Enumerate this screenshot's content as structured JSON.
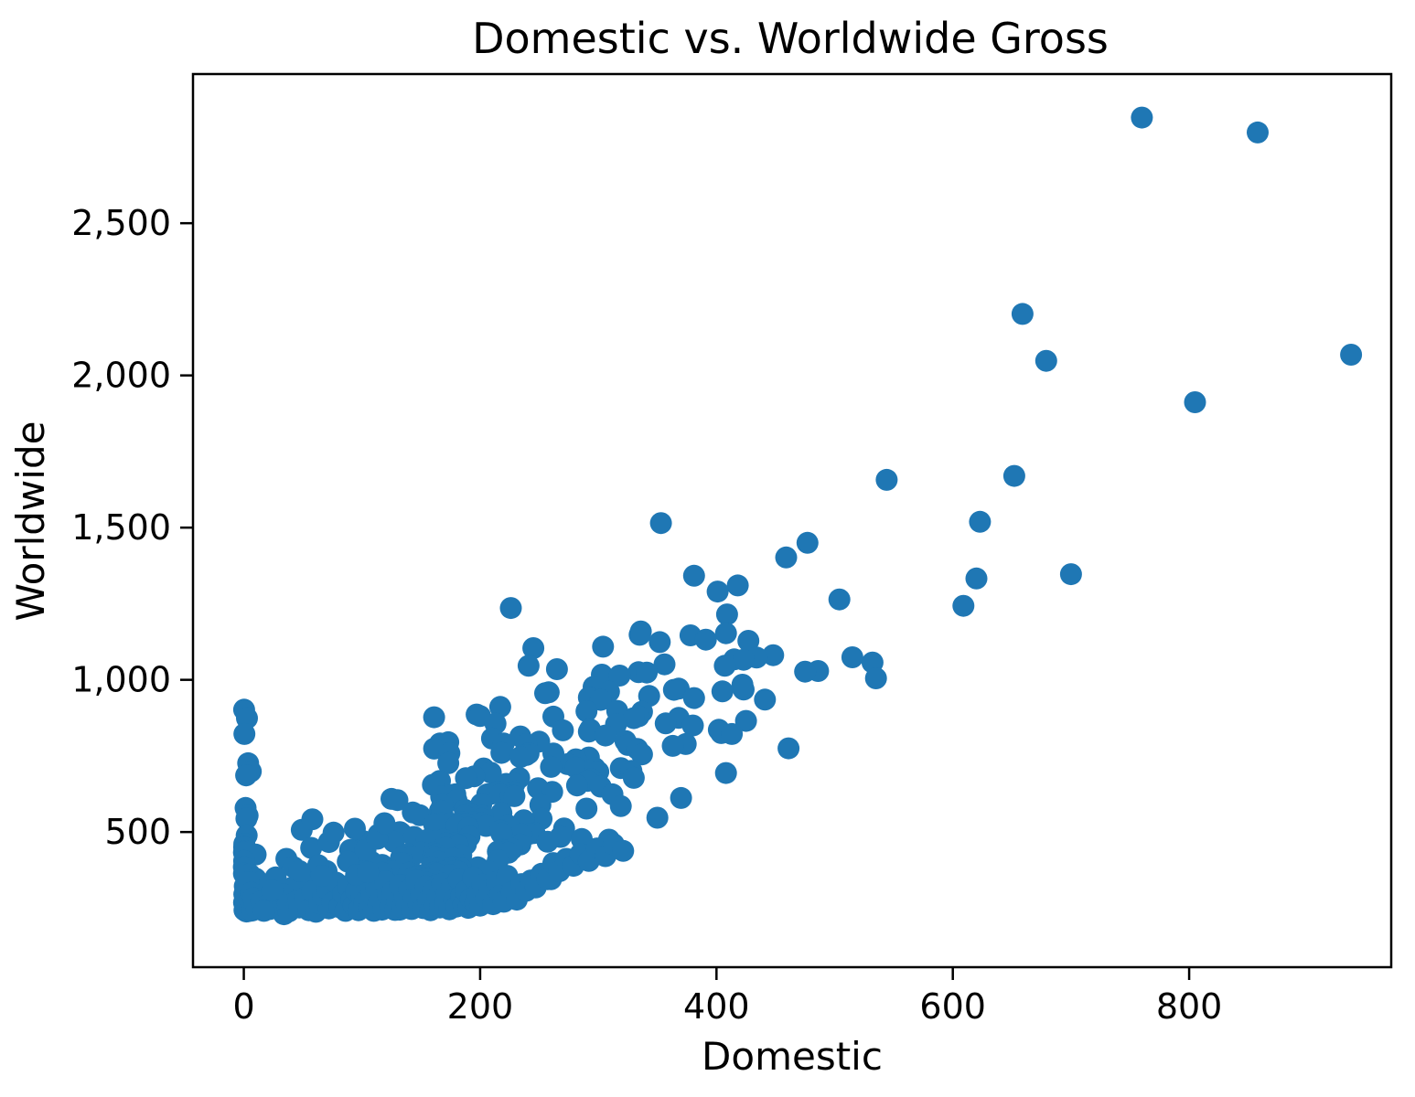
{
  "chart_data": {
    "type": "scatter",
    "title": "Domestic vs. Worldwide Gross",
    "xlabel": "Domestic",
    "ylabel": "Worldwide",
    "xlim": [
      -43,
      971
    ],
    "ylim": [
      56,
      2990
    ],
    "grid": false,
    "legend": null,
    "marker": {
      "color": "#1f77b4",
      "radius_px": 12
    },
    "x_ticks": {
      "values": [
        0,
        200,
        400,
        600,
        800
      ],
      "labels": [
        "0",
        "200",
        "400",
        "600",
        "800"
      ]
    },
    "y_ticks": {
      "values": [
        500,
        1000,
        1500,
        2000,
        2500
      ],
      "labels": [
        "500",
        "1,000",
        "1,500",
        "2,000",
        "2,500"
      ]
    },
    "points": [
      [
        760,
        2847
      ],
      [
        858,
        2798
      ],
      [
        659,
        2202
      ],
      [
        937,
        2068
      ],
      [
        679,
        2048
      ],
      [
        805,
        1912
      ],
      [
        652,
        1670
      ],
      [
        544,
        1657
      ],
      [
        623,
        1519
      ],
      [
        353,
        1515
      ],
      [
        477,
        1450
      ],
      [
        459,
        1402
      ],
      [
        700,
        1347
      ],
      [
        381,
        1342
      ],
      [
        620,
        1333
      ],
      [
        418,
        1310
      ],
      [
        401,
        1290
      ],
      [
        504,
        1264
      ],
      [
        609,
        1243
      ],
      [
        226,
        1236
      ],
      [
        409,
        1215
      ],
      [
        336,
        1159
      ],
      [
        408,
        1153
      ],
      [
        335,
        1148
      ],
      [
        378,
        1146
      ],
      [
        391,
        1132
      ],
      [
        427,
        1128
      ],
      [
        352,
        1124
      ],
      [
        304,
        1109
      ],
      [
        245,
        1104
      ],
      [
        448,
        1081
      ],
      [
        515,
        1074
      ],
      [
        434,
        1073
      ],
      [
        415,
        1067
      ],
      [
        423,
        1066
      ],
      [
        532,
        1057
      ],
      [
        356,
        1051
      ],
      [
        407,
        1046
      ],
      [
        241,
        1046
      ],
      [
        265,
        1035
      ],
      [
        486,
        1029
      ],
      [
        475,
        1027
      ],
      [
        334,
        1025
      ],
      [
        341,
        1024
      ],
      [
        303,
        1017
      ],
      [
        318,
        1014
      ],
      [
        535,
        1005
      ],
      [
        422,
        984
      ],
      [
        296,
        977
      ],
      [
        368,
        971
      ],
      [
        423,
        968
      ],
      [
        364,
        967
      ],
      [
        405,
        962
      ],
      [
        309,
        961
      ],
      [
        258,
        959
      ],
      [
        255,
        956
      ],
      [
        343,
        947
      ],
      [
        292,
        942
      ],
      [
        381,
        940
      ],
      [
        441,
        935
      ],
      [
        302,
        934
      ],
      [
        217,
        911
      ],
      [
        0.3,
        902
      ],
      [
        316,
        898
      ],
      [
        290,
        897
      ],
      [
        337,
        895
      ],
      [
        197,
        886
      ],
      [
        200,
        881
      ],
      [
        334,
        880
      ],
      [
        262,
        879
      ],
      [
        161,
        877
      ],
      [
        368,
        875
      ],
      [
        330,
        874
      ],
      [
        2.7,
        874
      ],
      [
        425,
        865
      ],
      [
        357,
        857
      ],
      [
        213,
        856
      ],
      [
        315,
        854
      ],
      [
        380,
        850
      ],
      [
        293,
        837
      ],
      [
        402,
        836
      ],
      [
        270,
        834
      ],
      [
        292,
        830
      ],
      [
        404,
        825
      ],
      [
        0.5,
        822
      ],
      [
        413,
        822
      ],
      [
        306,
        817
      ],
      [
        234,
        814
      ],
      [
        210,
        807
      ],
      [
        323,
        799
      ],
      [
        250,
        797
      ],
      [
        173,
        795
      ],
      [
        220,
        791
      ],
      [
        166,
        791
      ],
      [
        374,
        789
      ],
      [
        239,
        789
      ],
      [
        325,
        786
      ],
      [
        363,
        783
      ],
      [
        461,
        775
      ],
      [
        161,
        774
      ],
      [
        333,
        773
      ],
      [
        218,
        760
      ],
      [
        174,
        759
      ],
      [
        262,
        758
      ],
      [
        241,
        758
      ],
      [
        337,
        755
      ],
      [
        239,
        753
      ],
      [
        234,
        746
      ],
      [
        292,
        745
      ],
      [
        281,
        739
      ],
      [
        3.7,
        726
      ],
      [
        173,
        726
      ],
      [
        274,
        723
      ],
      [
        260,
        714
      ],
      [
        281,
        712
      ],
      [
        319,
        710
      ],
      [
        297,
        710
      ],
      [
        203,
        709
      ],
      [
        328,
        701
      ],
      [
        5.9,
        699
      ],
      [
        300,
        698
      ],
      [
        209,
        695
      ],
      [
        408,
        694
      ],
      [
        2,
        686
      ],
      [
        195,
        683
      ],
      [
        330,
        678
      ],
      [
        233,
        678
      ],
      [
        188,
        677
      ],
      [
        294,
        673
      ],
      [
        291,
        668
      ],
      [
        166,
        668
      ],
      [
        165,
        665
      ],
      [
        229,
        658
      ],
      [
        222,
        658
      ],
      [
        160,
        655
      ],
      [
        282,
        653
      ],
      [
        302,
        649
      ],
      [
        249,
        644
      ],
      [
        215,
        632
      ],
      [
        261,
        632
      ],
      [
        228,
        630
      ],
      [
        210,
        626
      ],
      [
        206,
        624
      ],
      [
        312,
        624
      ],
      [
        179,
        624
      ],
      [
        217,
        623
      ],
      [
        177,
        622
      ],
      [
        226,
        619
      ],
      [
        229,
        618
      ],
      [
        167,
        616
      ],
      [
        370,
        612
      ],
      [
        125,
        609
      ],
      [
        130,
        605
      ],
      [
        180,
        604
      ],
      [
        201,
        592
      ],
      [
        251,
        589
      ],
      [
        168,
        589
      ],
      [
        319,
        585
      ],
      [
        1.5,
        579
      ],
      [
        290,
        577
      ],
      [
        187,
        573
      ],
      [
        166,
        570
      ],
      [
        168,
        567
      ],
      [
        218,
        562
      ],
      [
        143,
        564
      ],
      [
        191,
        560
      ],
      [
        149,
        555
      ],
      [
        3.2,
        554
      ],
      [
        202,
        553
      ],
      [
        187,
        553
      ],
      [
        350,
        547
      ],
      [
        2.2,
        544
      ],
      [
        252,
        543
      ],
      [
        201,
        543
      ],
      [
        237,
        539
      ],
      [
        194,
        533
      ],
      [
        184,
        533
      ],
      [
        201,
        529
      ],
      [
        183,
        527
      ],
      [
        188,
        527
      ],
      [
        167,
        528
      ],
      [
        175,
        528
      ],
      [
        271,
        512
      ],
      [
        224,
        521
      ],
      [
        205,
        520
      ],
      [
        180,
        519
      ],
      [
        190,
        513
      ],
      [
        49,
        507
      ],
      [
        218,
        506
      ],
      [
        217,
        504
      ],
      [
        132,
        500
      ],
      [
        161,
        525
      ],
      [
        246,
        497
      ],
      [
        133,
        497
      ],
      [
        242,
        494
      ],
      [
        235,
        493
      ],
      [
        218,
        495
      ],
      [
        114,
        492
      ],
      [
        2.4,
        489
      ],
      [
        191,
        485
      ],
      [
        268,
        484
      ],
      [
        144,
        484
      ],
      [
        286,
        477
      ],
      [
        309,
        475
      ],
      [
        169,
        475
      ],
      [
        155,
        474
      ],
      [
        101,
        470
      ],
      [
        127,
        468
      ],
      [
        257,
        468
      ],
      [
        178,
        463
      ],
      [
        171,
        463
      ],
      [
        0.4,
        461
      ],
      [
        188,
        460
      ],
      [
        234,
        459
      ],
      [
        0.3,
        450
      ],
      [
        181,
        457
      ],
      [
        171,
        448
      ],
      [
        227,
        444
      ],
      [
        90,
        441
      ],
      [
        219,
        441
      ],
      [
        219,
        440
      ],
      [
        0.7,
        437
      ],
      [
        215,
        436
      ],
      [
        150,
        433
      ],
      [
        0.1,
        433
      ],
      [
        161,
        432
      ],
      [
        224,
        432
      ],
      [
        101,
        428
      ],
      [
        139,
        427
      ],
      [
        163,
        426
      ],
      [
        10,
        426
      ],
      [
        184,
        424
      ],
      [
        142,
        419
      ],
      [
        104,
        416
      ],
      [
        133,
        415
      ],
      [
        162,
        415
      ],
      [
        177,
        413
      ],
      [
        36,
        412
      ],
      [
        215,
        407
      ],
      [
        0.3,
        405
      ],
      [
        165,
        402
      ],
      [
        108,
        402
      ],
      [
        134,
        398
      ],
      [
        103,
        390
      ],
      [
        117,
        392
      ],
      [
        111,
        386
      ],
      [
        177,
        386
      ],
      [
        0.03,
        385
      ],
      [
        198,
        384
      ],
      [
        176,
        383
      ],
      [
        184,
        380
      ],
      [
        114,
        381
      ],
      [
        159,
        385
      ],
      [
        180,
        373
      ],
      [
        206,
        373
      ],
      [
        125,
        371
      ],
      [
        70,
        372
      ],
      [
        101,
        372
      ],
      [
        177,
        370
      ],
      [
        168,
        369
      ],
      [
        182,
        369
      ],
      [
        161,
        367
      ],
      [
        117,
        366
      ],
      [
        140,
        366
      ],
      [
        163,
        363
      ],
      [
        0.1,
        363
      ],
      [
        5,
        361
      ],
      [
        174,
        359
      ],
      [
        148,
        358
      ],
      [
        107,
        352
      ],
      [
        146,
        353
      ],
      [
        71,
        348
      ],
      [
        154,
        347
      ],
      [
        142,
        346
      ],
      [
        10,
        347
      ],
      [
        260,
        345
      ],
      [
        27,
        351
      ],
      [
        122,
        331
      ],
      [
        155,
        333
      ],
      [
        163,
        325
      ],
      [
        138,
        325
      ],
      [
        100,
        325
      ],
      [
        102,
        320
      ],
      [
        187,
        314
      ],
      [
        114,
        310
      ],
      [
        121,
        304
      ],
      [
        150,
        302
      ],
      [
        155,
        298
      ],
      [
        157,
        296
      ],
      [
        160,
        297
      ],
      [
        127,
        287
      ],
      [
        13,
        334
      ],
      [
        52,
        336
      ],
      [
        41,
        318
      ],
      [
        33,
        296
      ],
      [
        83,
        283
      ],
      [
        108,
        268
      ],
      [
        135,
        265
      ],
      [
        99,
        253
      ],
      [
        130,
        246
      ],
      [
        80,
        254
      ],
      [
        66,
        252
      ],
      [
        132,
        245
      ],
      [
        4,
        240
      ],
      [
        34,
        230
      ],
      [
        117,
        245
      ],
      [
        22,
        247
      ],
      [
        31,
        262
      ],
      [
        38,
        239
      ],
      [
        44,
        271
      ],
      [
        47,
        252
      ],
      [
        52,
        284
      ],
      [
        55,
        243
      ],
      [
        58,
        305
      ],
      [
        61,
        238
      ],
      [
        64,
        266
      ],
      [
        67,
        291
      ],
      [
        70,
        315
      ],
      [
        72,
        249
      ],
      [
        75,
        268
      ],
      [
        78,
        334
      ],
      [
        81,
        256
      ],
      [
        84,
        297
      ],
      [
        86,
        241
      ],
      [
        88,
        323
      ],
      [
        91,
        277
      ],
      [
        93,
        259
      ],
      [
        95,
        306
      ],
      [
        97,
        243
      ],
      [
        100,
        286
      ],
      [
        102,
        269
      ],
      [
        104,
        331
      ],
      [
        106,
        252
      ],
      [
        108,
        296
      ],
      [
        110,
        241
      ],
      [
        112,
        315
      ],
      [
        114,
        263
      ],
      [
        116,
        279
      ],
      [
        118,
        248
      ],
      [
        120,
        338
      ],
      [
        122,
        291
      ],
      [
        124,
        257
      ],
      [
        126,
        305
      ],
      [
        128,
        244
      ],
      [
        130,
        272
      ],
      [
        132,
        326
      ],
      [
        134,
        252
      ],
      [
        136,
        289
      ],
      [
        138,
        261
      ],
      [
        140,
        310
      ],
      [
        142,
        247
      ],
      [
        144,
        283
      ],
      [
        146,
        341
      ],
      [
        148,
        262
      ],
      [
        150,
        295
      ],
      [
        152,
        250
      ],
      [
        154,
        322
      ],
      [
        156,
        274
      ],
      [
        158,
        243
      ],
      [
        160,
        308
      ],
      [
        162,
        259
      ],
      [
        164,
        287
      ],
      [
        166,
        252
      ],
      [
        168,
        330
      ],
      [
        170,
        266
      ],
      [
        172,
        299
      ],
      [
        174,
        246
      ],
      [
        176,
        318
      ],
      [
        178,
        277
      ],
      [
        180,
        255
      ],
      [
        182,
        344
      ],
      [
        184,
        290
      ],
      [
        186,
        262
      ],
      [
        188,
        307
      ],
      [
        190,
        251
      ],
      [
        192,
        281
      ],
      [
        194,
        351
      ],
      [
        196,
        268
      ],
      [
        198,
        296
      ],
      [
        200,
        258
      ],
      [
        202,
        327
      ],
      [
        205,
        285
      ],
      [
        208,
        309
      ],
      [
        211,
        263
      ],
      [
        214,
        336
      ],
      [
        217,
        292
      ],
      [
        220,
        271
      ],
      [
        223,
        356
      ],
      [
        227,
        302
      ],
      [
        231,
        278
      ],
      [
        235,
        329
      ],
      [
        239,
        307
      ],
      [
        243,
        341
      ],
      [
        247,
        318
      ],
      [
        252,
        363
      ],
      [
        257,
        345
      ],
      [
        262,
        398
      ],
      [
        267,
        371
      ],
      [
        273,
        412
      ],
      [
        279,
        389
      ],
      [
        285,
        428
      ],
      [
        292,
        405
      ],
      [
        299,
        446
      ],
      [
        306,
        421
      ],
      [
        313,
        460
      ],
      [
        321,
        438
      ],
      [
        0.2,
        268
      ],
      [
        0.4,
        296
      ],
      [
        0.6,
        243
      ],
      [
        0.8,
        322
      ],
      [
        1.2,
        255
      ],
      [
        1.6,
        287
      ],
      [
        2.2,
        239
      ],
      [
        2.6,
        312
      ],
      [
        3.1,
        264
      ],
      [
        3.6,
        248
      ],
      [
        4.2,
        335
      ],
      [
        4.8,
        276
      ],
      [
        5.5,
        251
      ],
      [
        6.2,
        301
      ],
      [
        7,
        242
      ],
      [
        8,
        283
      ],
      [
        9,
        262
      ],
      [
        11,
        247
      ],
      [
        15,
        272
      ],
      [
        42,
        385
      ],
      [
        57,
        448
      ],
      [
        63,
        391
      ],
      [
        72,
        467
      ],
      [
        88,
        403
      ],
      [
        94,
        511
      ],
      [
        103,
        441
      ],
      [
        113,
        478
      ],
      [
        119,
        529
      ],
      [
        58,
        542
      ],
      [
        76,
        498
      ],
      [
        47,
        372
      ],
      [
        66,
        356
      ],
      [
        95,
        359
      ],
      [
        105,
        368
      ],
      [
        28,
        281
      ],
      [
        19,
        258
      ],
      [
        24,
        308
      ],
      [
        17,
        241
      ]
    ]
  }
}
